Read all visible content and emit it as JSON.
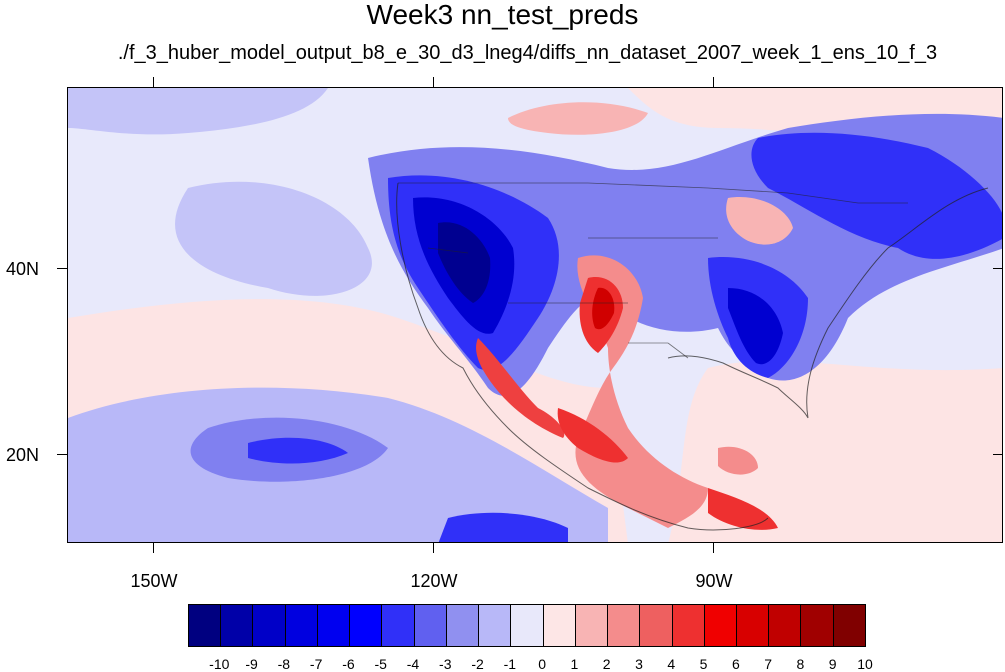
{
  "title": "Week3 nn_test_preds",
  "subtitle": "./f_3_huber_model_output_b8_e_30_d3_lneg4/diffs_nn_dataset_2007_week_1_ens_10_f_3",
  "axes": {
    "lat_labels": [
      "40N",
      "20N"
    ],
    "lon_labels": [
      "150W",
      "120W",
      "90W"
    ]
  },
  "colorbar": {
    "labels": [
      "-10",
      "-9",
      "-8",
      "-7",
      "-6",
      "-5",
      "-4",
      "-3",
      "-2",
      "-1",
      "0",
      "1",
      "2",
      "3",
      "4",
      "5",
      "6",
      "7",
      "8",
      "9",
      "10"
    ],
    "colors": [
      "#000080",
      "#0000a8",
      "#0000c8",
      "#0000e0",
      "#0000f0",
      "#0000ff",
      "#3030f8",
      "#6060f0",
      "#9090f0",
      "#b8b8f8",
      "#e8e8fa",
      "#fde6e6",
      "#f8b4b4",
      "#f48c8c",
      "#ee6060",
      "#ee3030",
      "#f00000",
      "#d80000",
      "#c00000",
      "#a00000",
      "#800000"
    ]
  },
  "map_colors": {
    "ocean_bg": "#e8e9fb",
    "light_blue": "#b8b8f8",
    "mid_blue": "#8080f0",
    "blue": "#3030f8",
    "dark_blue": "#0000d0",
    "navy": "#000090",
    "light_red": "#fde4e4",
    "pink": "#f8b4b4",
    "red": "#ee4040",
    "dark_red": "#d00000"
  }
}
